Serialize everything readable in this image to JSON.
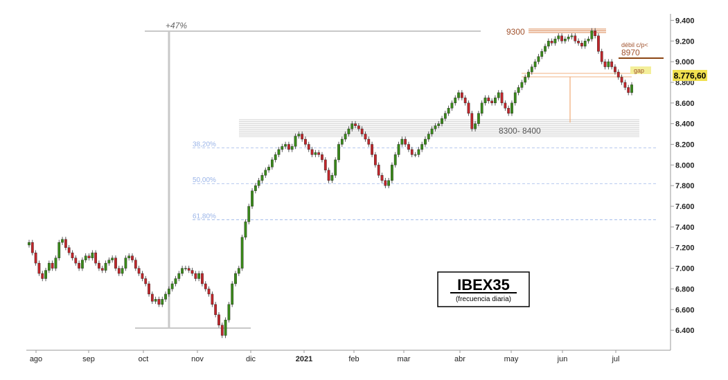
{
  "chart_data": {
    "type": "candlestick",
    "title": "IBEX35",
    "subtitle": "(frecuencia diaria)",
    "x_tick_labels": [
      "ago",
      "sep",
      "oct",
      "nov",
      "dic",
      "2021",
      "feb",
      "mar",
      "abr",
      "may",
      "jun",
      "jul"
    ],
    "y_tick_labels": [
      "9.400",
      "9.200",
      "9.000",
      "8.800",
      "8.600",
      "8.400",
      "8.200",
      "8.000",
      "7.800",
      "7.600",
      "7.400",
      "7.200",
      "7.000",
      "6.800",
      "6.600",
      "6.400"
    ],
    "y_ticks": [
      9400,
      9200,
      9000,
      8800,
      8600,
      8400,
      8200,
      8000,
      7800,
      7600,
      7400,
      7200,
      7000,
      6800,
      6600,
      6400
    ],
    "ylim": [
      6220,
      9510
    ],
    "last_price": 8776.6,
    "last_price_label": "8.776,60",
    "grid": false,
    "series": [
      {
        "closes": [
          7250,
          7150,
          7050,
          6950,
          6900,
          6980,
          7050,
          7000,
          7100,
          7250,
          7280,
          7200,
          7150,
          7100,
          7050,
          7000,
          7080,
          7120,
          7100,
          7150,
          7050,
          7000,
          6980,
          7050,
          7080,
          7100,
          7000,
          6950,
          7000,
          7100,
          7120,
          7080,
          7000,
          6950,
          6900,
          6850,
          6750,
          6680,
          6700,
          6650,
          6700,
          6750,
          6800,
          6850,
          6900,
          6950,
          7000,
          7000,
          6980,
          6950,
          6900,
          6950,
          6850,
          6800,
          6750,
          6650,
          6550,
          6450,
          6350,
          6500,
          6650,
          6850,
          6950,
          7000,
          7300,
          7450,
          7600,
          7750,
          7800,
          7850,
          7900,
          7950,
          7980,
          8050,
          8100,
          8150,
          8180,
          8200,
          8150,
          8180,
          8280,
          8300,
          8250,
          8200,
          8150,
          8100,
          8120,
          8100,
          8050,
          7950,
          7850,
          7900,
          8050,
          8200,
          8250,
          8300,
          8350,
          8400,
          8380,
          8350,
          8300,
          8250,
          8200,
          8100,
          8000,
          7900,
          7850,
          7800,
          7850,
          8000,
          8100,
          8200,
          8250,
          8200,
          8150,
          8100,
          8100,
          8150,
          8200,
          8250,
          8300,
          8350,
          8380,
          8400,
          8450,
          8500,
          8550,
          8600,
          8650,
          8700,
          8650,
          8600,
          8500,
          8350,
          8400,
          8500,
          8600,
          8650,
          8620,
          8600,
          8650,
          8700,
          8600,
          8550,
          8500,
          8600,
          8700,
          8750,
          8800,
          8850,
          8900,
          8950,
          9000,
          9050,
          9100,
          9150,
          9200,
          9180,
          9220,
          9250,
          9200,
          9220,
          9240,
          9250,
          9200,
          9180,
          9150,
          9200,
          9220,
          9300,
          9250,
          9100,
          9000,
          8950,
          9000,
          8950,
          8900,
          8850,
          8800,
          8750,
          8700,
          8776.6
        ]
      }
    ],
    "annotations": {
      "pct_label": "+47%",
      "label_9300": "9300",
      "label_8970": "8970",
      "label_debil": "débil c/p<",
      "label_gap": "gap",
      "label_zone": "8300- 8400",
      "fib_levels": [
        {
          "label": "38,20%",
          "value": 8165
        },
        {
          "label": "50,00%",
          "value": 7820
        },
        {
          "label": "61,80%",
          "value": 7470
        }
      ]
    },
    "colors": {
      "up": "#3a8a1a",
      "down": "#c0262b",
      "fib": "#9ab4e8",
      "annot": "#a0522d",
      "price_tag": "#f0e050",
      "gap_tag": "#f4ef9a"
    }
  }
}
